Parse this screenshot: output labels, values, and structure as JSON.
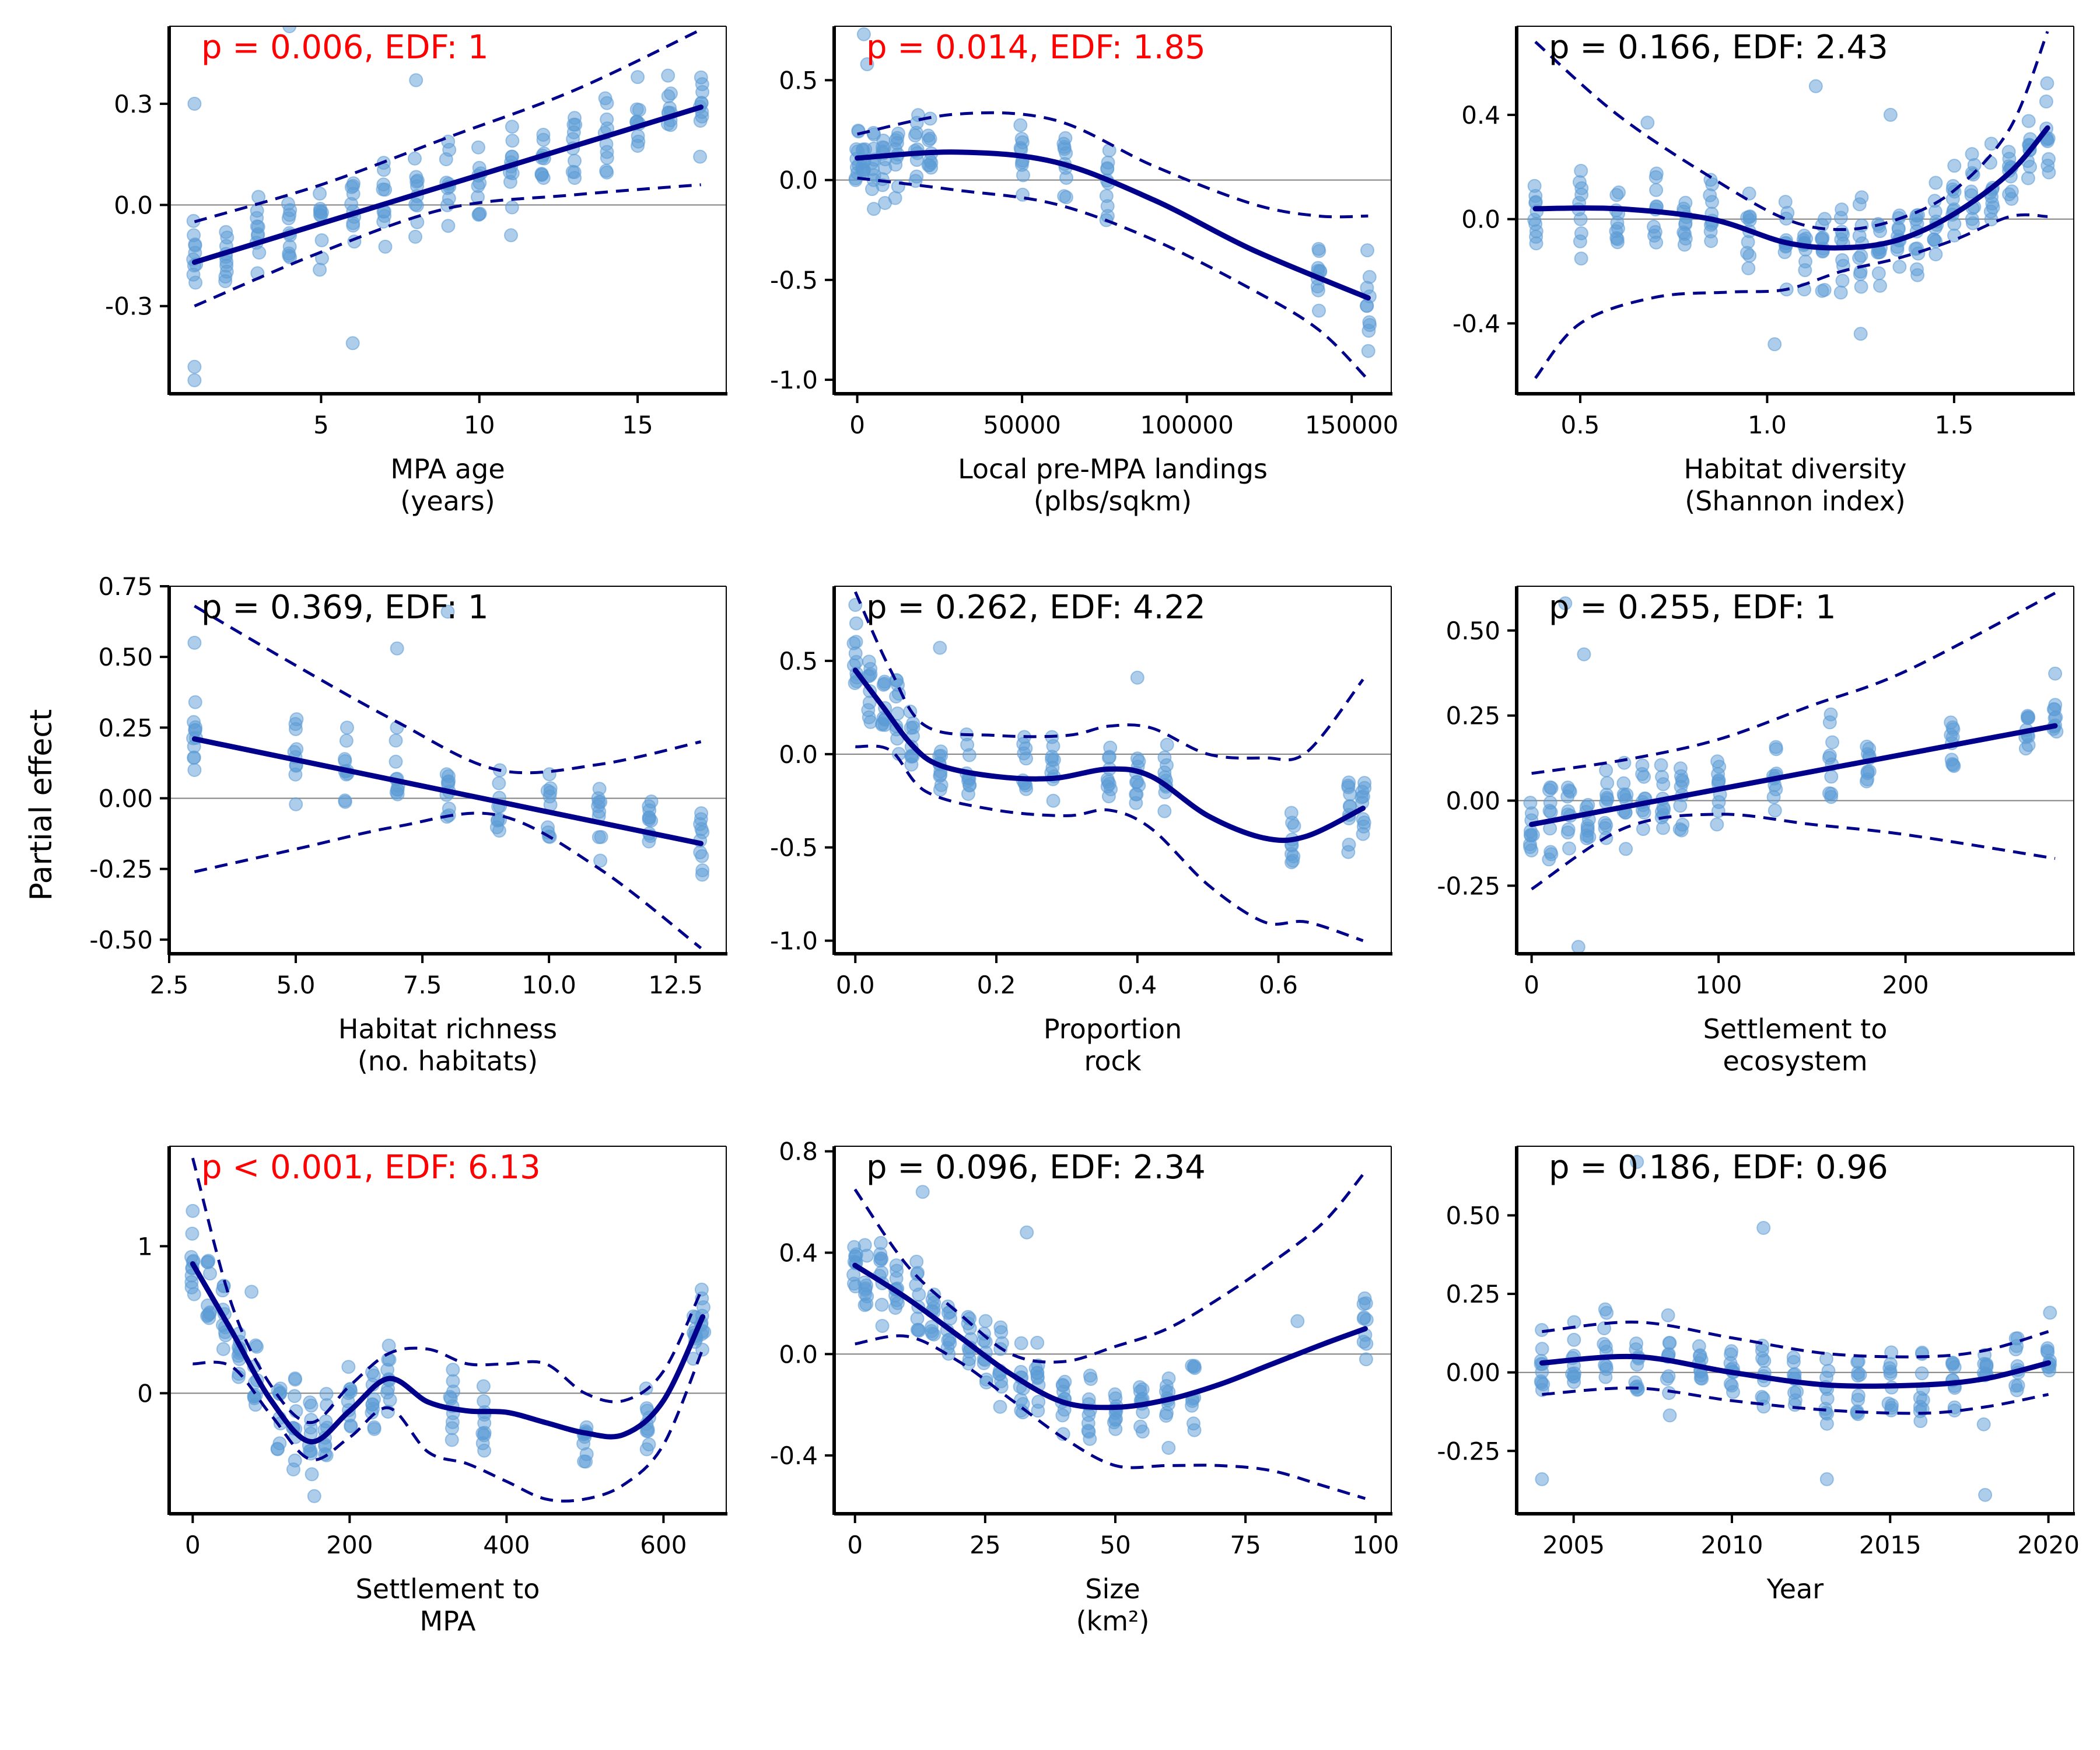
{
  "figure": {
    "ylabel": "Partial effect",
    "colors": {
      "points": "#5b9bd5",
      "fit": "#00008b",
      "significant_annotation": "#ff0000",
      "annotation": "#000000",
      "zero_line": "#808080"
    }
  },
  "chart_data": [
    {
      "type": "scatter",
      "name": "MPA age",
      "xlabel": "MPA age\n(years)",
      "annotation": "p =  0.006, EDF: 1",
      "significant": true,
      "xlim": [
        0.2,
        17.8
      ],
      "ylim": [
        -0.56,
        0.53
      ],
      "xticks": [
        5,
        10,
        15
      ],
      "yticks": [
        -0.3,
        0.0,
        0.3
      ],
      "ytick_labels": [
        "-0.3",
        "0.0",
        "0.3"
      ],
      "fit": {
        "x": [
          1,
          17
        ],
        "y": [
          -0.17,
          0.29
        ]
      },
      "upper": {
        "x": [
          1,
          5,
          9,
          13,
          17
        ],
        "y": [
          -0.05,
          0.06,
          0.2,
          0.34,
          0.52
        ]
      },
      "lower": {
        "x": [
          1,
          5,
          9,
          13,
          17
        ],
        "y": [
          -0.3,
          -0.14,
          -0.01,
          0.03,
          0.06
        ]
      },
      "points": {
        "x_values": [
          1,
          2,
          3,
          4,
          5,
          6,
          7,
          8,
          9,
          10,
          11,
          12,
          13,
          14,
          15,
          16,
          17
        ],
        "outliers": [
          [
            1,
            0.3
          ],
          [
            1,
            -0.48
          ],
          [
            1,
            -0.52
          ],
          [
            4,
            0.53
          ],
          [
            6,
            -0.41
          ],
          [
            8,
            0.37
          ],
          [
            11,
            -0.09
          ]
        ]
      }
    },
    {
      "type": "scatter",
      "name": "Local pre-MPA landings",
      "xlabel": "Local pre-MPA landings\n(plbs/sqkm)",
      "annotation": "p =  0.014, EDF: 1.85",
      "significant": true,
      "xlim": [
        -7000,
        162000
      ],
      "ylim": [
        -1.07,
        0.77
      ],
      "xticks": [
        0,
        50000,
        100000,
        150000
      ],
      "yticks": [
        -1.0,
        -0.5,
        0.0,
        0.5
      ],
      "ytick_labels": [
        "-1.0",
        "-0.5",
        "0.0",
        "0.5"
      ],
      "fit": {
        "x": [
          0,
          30000,
          60000,
          90000,
          120000,
          155000
        ],
        "y": [
          0.11,
          0.14,
          0.09,
          -0.1,
          -0.35,
          -0.59
        ]
      },
      "upper": {
        "x": [
          0,
          30000,
          60000,
          90000,
          120000,
          140000,
          155000
        ],
        "y": [
          0.23,
          0.33,
          0.3,
          0.07,
          -0.12,
          -0.18,
          -0.18
        ]
      },
      "lower": {
        "x": [
          0,
          30000,
          60000,
          90000,
          120000,
          140000,
          155000
        ],
        "y": [
          0.01,
          -0.05,
          -0.12,
          -0.3,
          -0.55,
          -0.75,
          -1.0
        ]
      },
      "points": {
        "x_values": [
          0,
          2000,
          5000,
          8000,
          12000,
          18000,
          22000,
          50000,
          63000,
          76000,
          140000,
          155000
        ],
        "outliers": [
          [
            2000,
            0.73
          ],
          [
            3000,
            0.58
          ]
        ]
      }
    },
    {
      "type": "scatter",
      "name": "Habitat diversity",
      "xlabel": "Habitat diversity\n(Shannon index)",
      "annotation": "p =  0.166, EDF: 2.43",
      "significant": false,
      "xlim": [
        0.33,
        1.82
      ],
      "ylim": [
        -0.67,
        0.74
      ],
      "xticks": [
        0.5,
        1.0,
        1.5
      ],
      "yticks": [
        -0.4,
        0.0,
        0.4
      ],
      "ytick_labels": [
        "-0.4",
        "0.0",
        "0.4"
      ],
      "fit": {
        "x": [
          0.38,
          0.6,
          0.85,
          1.05,
          1.2,
          1.35,
          1.5,
          1.65,
          1.75
        ],
        "y": [
          0.04,
          0.04,
          0.0,
          -0.09,
          -0.11,
          -0.08,
          0.02,
          0.18,
          0.35
        ]
      },
      "upper": {
        "x": [
          0.38,
          0.6,
          0.85,
          1.05,
          1.2,
          1.35,
          1.5,
          1.65,
          1.75
        ],
        "y": [
          0.68,
          0.4,
          0.16,
          0.0,
          -0.04,
          0.0,
          0.11,
          0.35,
          0.72
        ]
      },
      "lower": {
        "x": [
          0.38,
          0.5,
          0.7,
          0.9,
          1.05,
          1.2,
          1.35,
          1.5,
          1.65,
          1.75
        ],
        "y": [
          -0.61,
          -0.4,
          -0.3,
          -0.28,
          -0.27,
          -0.2,
          -0.15,
          -0.08,
          0.01,
          0.01
        ]
      },
      "points": {
        "x_values": [
          0.38,
          0.5,
          0.6,
          0.7,
          0.78,
          0.85,
          0.95,
          1.05,
          1.1,
          1.15,
          1.2,
          1.25,
          1.3,
          1.35,
          1.4,
          1.45,
          1.5,
          1.55,
          1.6,
          1.65,
          1.7,
          1.75
        ],
        "outliers": [
          [
            1.13,
            0.51
          ],
          [
            1.33,
            0.4
          ],
          [
            0.68,
            0.37
          ],
          [
            1.02,
            -0.48
          ],
          [
            1.25,
            -0.44
          ]
        ]
      }
    },
    {
      "type": "scatter",
      "name": "Habitat richness",
      "xlabel": "Habitat richness\n(no. habitats)",
      "annotation": "p =  0.369, EDF: 1",
      "significant": false,
      "xlim": [
        2.5,
        13.5
      ],
      "ylim": [
        -0.55,
        0.75
      ],
      "xticks": [
        2.5,
        5.0,
        7.5,
        10.0,
        12.5
      ],
      "yticks": [
        -0.5,
        -0.25,
        0.0,
        0.25,
        0.5,
        0.75
      ],
      "ytick_labels": [
        "-0.50",
        "-0.25",
        "0.00",
        "0.25",
        "0.50",
        "0.75"
      ],
      "fit": {
        "x": [
          3,
          13
        ],
        "y": [
          0.21,
          -0.16
        ]
      },
      "upper": {
        "x": [
          3,
          5,
          7,
          9,
          11,
          13
        ],
        "y": [
          0.68,
          0.47,
          0.27,
          0.1,
          0.12,
          0.2
        ]
      },
      "lower": {
        "x": [
          3,
          5,
          7,
          9,
          11,
          13
        ],
        "y": [
          -0.26,
          -0.18,
          -0.1,
          -0.06,
          -0.25,
          -0.53
        ]
      },
      "points": {
        "x_values": [
          3,
          5,
          6,
          7,
          8,
          9,
          10,
          11,
          12,
          13
        ],
        "outliers": [
          [
            3,
            0.55
          ],
          [
            7,
            0.53
          ],
          [
            8,
            0.66
          ],
          [
            3,
            0.1
          ]
        ]
      }
    },
    {
      "type": "scatter",
      "name": "Proportion rock",
      "xlabel": "Proportion\nrock",
      "annotation": "p =  0.262, EDF: 4.22",
      "significant": false,
      "xlim": [
        -0.03,
        0.76
      ],
      "ylim": [
        -1.07,
        0.9
      ],
      "xticks": [
        0.0,
        0.2,
        0.4,
        0.6
      ],
      "yticks": [
        -1.0,
        -0.5,
        0.0,
        0.5
      ],
      "ytick_labels": [
        "-1.0",
        "-0.5",
        "0.0",
        "0.5"
      ],
      "fit": {
        "x": [
          0.0,
          0.04,
          0.08,
          0.12,
          0.2,
          0.28,
          0.36,
          0.42,
          0.5,
          0.58,
          0.64,
          0.72
        ],
        "y": [
          0.45,
          0.25,
          0.05,
          -0.06,
          -0.12,
          -0.13,
          -0.08,
          -0.12,
          -0.33,
          -0.45,
          -0.44,
          -0.29
        ]
      },
      "upper": {
        "x": [
          0.0,
          0.05,
          0.1,
          0.2,
          0.3,
          0.36,
          0.42,
          0.5,
          0.58,
          0.64,
          0.72
        ],
        "y": [
          0.87,
          0.45,
          0.15,
          0.1,
          0.1,
          0.15,
          0.14,
          0.0,
          -0.02,
          0.01,
          0.4
        ]
      },
      "lower": {
        "x": [
          0.0,
          0.05,
          0.1,
          0.2,
          0.3,
          0.36,
          0.42,
          0.5,
          0.58,
          0.64,
          0.72
        ],
        "y": [
          0.04,
          0.02,
          -0.2,
          -0.3,
          -0.33,
          -0.3,
          -0.4,
          -0.7,
          -0.9,
          -0.9,
          -1.0
        ]
      },
      "points": {
        "x_values": [
          0.0,
          0.02,
          0.04,
          0.06,
          0.08,
          0.12,
          0.16,
          0.24,
          0.28,
          0.36,
          0.4,
          0.44,
          0.62,
          0.7,
          0.72
        ],
        "outliers": [
          [
            0.12,
            0.57
          ],
          [
            0.4,
            0.41
          ],
          [
            0.0,
            0.8
          ]
        ]
      }
    },
    {
      "type": "scatter",
      "name": "Settlement to ecosystem",
      "xlabel": "Settlement to\necosystem",
      "annotation": "p =  0.255, EDF: 1",
      "significant": false,
      "xlim": [
        -8,
        290
      ],
      "ylim": [
        -0.45,
        0.63
      ],
      "xticks": [
        0,
        100,
        200
      ],
      "yticks": [
        -0.25,
        0.0,
        0.25,
        0.5
      ],
      "ytick_labels": [
        "-0.25",
        "0.00",
        "0.25",
        "0.50"
      ],
      "fit": {
        "x": [
          0,
          280
        ],
        "y": [
          -0.07,
          0.22
        ]
      },
      "upper": {
        "x": [
          0,
          50,
          100,
          150,
          200,
          280
        ],
        "y": [
          0.08,
          0.12,
          0.18,
          0.28,
          0.38,
          0.61
        ]
      },
      "lower": {
        "x": [
          0,
          50,
          100,
          150,
          200,
          280
        ],
        "y": [
          -0.26,
          -0.08,
          -0.04,
          -0.07,
          -0.1,
          -0.17
        ]
      },
      "points": {
        "x_values": [
          0,
          10,
          20,
          30,
          40,
          50,
          60,
          70,
          80,
          100,
          130,
          160,
          180,
          225,
          265,
          280
        ],
        "outliers": [
          [
            18,
            0.58
          ],
          [
            28,
            0.43
          ],
          [
            25,
            -0.43
          ]
        ]
      }
    },
    {
      "type": "scatter",
      "name": "Settlement to MPA",
      "xlabel": "Settlement to\nMPA",
      "annotation": "p < 0.001, EDF: 6.13",
      "significant": true,
      "xlim": [
        -30,
        680
      ],
      "ylim": [
        -0.82,
        1.68
      ],
      "xticks": [
        0,
        200,
        400,
        600
      ],
      "yticks": [
        0,
        1
      ],
      "ytick_labels": [
        "0",
        "1"
      ],
      "fit": {
        "x": [
          0,
          50,
          100,
          150,
          200,
          250,
          300,
          350,
          400,
          450,
          500,
          550,
          600,
          650
        ],
        "y": [
          0.88,
          0.42,
          -0.05,
          -0.33,
          -0.12,
          0.1,
          -0.06,
          -0.12,
          -0.13,
          -0.2,
          -0.27,
          -0.28,
          -0.05,
          0.52
        ]
      },
      "upper": {
        "x": [
          0,
          50,
          100,
          150,
          200,
          250,
          300,
          350,
          400,
          450,
          500,
          550,
          600,
          650
        ],
        "y": [
          1.6,
          0.6,
          0.05,
          -0.2,
          0.05,
          0.27,
          0.3,
          0.2,
          0.2,
          0.2,
          0.0,
          -0.05,
          0.15,
          0.72
        ]
      },
      "lower": {
        "x": [
          0,
          50,
          100,
          150,
          200,
          250,
          300,
          350,
          400,
          450,
          500,
          550,
          600,
          650
        ],
        "y": [
          0.2,
          0.18,
          -0.15,
          -0.45,
          -0.3,
          -0.1,
          -0.4,
          -0.48,
          -0.6,
          -0.72,
          -0.72,
          -0.62,
          -0.35,
          0.3
        ]
      },
      "points": {
        "x_values": [
          0,
          20,
          40,
          60,
          80,
          110,
          130,
          150,
          170,
          200,
          230,
          250,
          330,
          370,
          500,
          580,
          640,
          650
        ],
        "outliers": [
          [
            0,
            1.24
          ],
          [
            155,
            -0.7
          ],
          [
            75,
            0.69
          ]
        ]
      }
    },
    {
      "type": "scatter",
      "name": "Size",
      "xlabel": "Size\n(km²)",
      "annotation": "p =  0.096, EDF: 2.34",
      "significant": false,
      "xlim": [
        -4,
        103
      ],
      "ylim": [
        -0.63,
        0.82
      ],
      "xticks": [
        0,
        25,
        50,
        75,
        100
      ],
      "yticks": [
        -0.4,
        0.0,
        0.4,
        0.8
      ],
      "ytick_labels": [
        "-0.4",
        "0.0",
        "0.4",
        "0.8"
      ],
      "fit": {
        "x": [
          0,
          10,
          20,
          30,
          40,
          50,
          60,
          70,
          80,
          90,
          98
        ],
        "y": [
          0.35,
          0.22,
          0.07,
          -0.08,
          -0.19,
          -0.21,
          -0.18,
          -0.12,
          -0.04,
          0.04,
          0.1
        ]
      },
      "upper": {
        "x": [
          0,
          10,
          20,
          30,
          40,
          50,
          60,
          70,
          80,
          90,
          98
        ],
        "y": [
          0.65,
          0.35,
          0.16,
          0.0,
          -0.03,
          0.03,
          0.1,
          0.22,
          0.36,
          0.52,
          0.72
        ]
      },
      "lower": {
        "x": [
          0,
          10,
          20,
          30,
          40,
          50,
          60,
          70,
          80,
          90,
          98
        ],
        "y": [
          0.04,
          0.07,
          -0.03,
          -0.18,
          -0.33,
          -0.44,
          -0.44,
          -0.44,
          -0.46,
          -0.52,
          -0.57
        ]
      },
      "points": {
        "x_values": [
          0,
          2,
          5,
          8,
          12,
          15,
          18,
          22,
          25,
          28,
          32,
          35,
          40,
          45,
          50,
          55,
          60,
          65,
          98
        ],
        "outliers": [
          [
            13,
            0.64
          ],
          [
            33,
            0.48
          ],
          [
            85,
            0.13
          ]
        ]
      }
    },
    {
      "type": "scatter",
      "name": "Year",
      "xlabel": "Year",
      "annotation": "p =  0.186, EDF: 0.96",
      "significant": false,
      "xlim": [
        2003.2,
        2020.8
      ],
      "ylim": [
        -0.45,
        0.72
      ],
      "xticks": [
        2005,
        2010,
        2015,
        2020
      ],
      "yticks": [
        -0.25,
        0.0,
        0.25,
        0.5
      ],
      "ytick_labels": [
        "-0.25",
        "0.00",
        "0.25",
        "0.50"
      ],
      "fit": {
        "x": [
          2004,
          2007,
          2010,
          2013,
          2016,
          2018,
          2020
        ],
        "y": [
          0.03,
          0.05,
          0.0,
          -0.04,
          -0.04,
          -0.02,
          0.03
        ]
      },
      "upper": {
        "x": [
          2004,
          2007,
          2010,
          2013,
          2016,
          2018,
          2020
        ],
        "y": [
          0.13,
          0.16,
          0.11,
          0.06,
          0.05,
          0.07,
          0.13
        ]
      },
      "lower": {
        "x": [
          2004,
          2007,
          2010,
          2013,
          2016,
          2018,
          2020
        ],
        "y": [
          -0.07,
          -0.05,
          -0.09,
          -0.12,
          -0.13,
          -0.11,
          -0.07
        ]
      },
      "points": {
        "x_values": [
          2004,
          2005,
          2006,
          2007,
          2008,
          2009,
          2010,
          2011,
          2012,
          2013,
          2014,
          2015,
          2016,
          2017,
          2018,
          2019,
          2020
        ],
        "outliers": [
          [
            2007,
            0.67
          ],
          [
            2011,
            0.46
          ],
          [
            2013,
            -0.34
          ],
          [
            2004,
            -0.34
          ],
          [
            2018,
            -0.39
          ]
        ]
      }
    }
  ]
}
